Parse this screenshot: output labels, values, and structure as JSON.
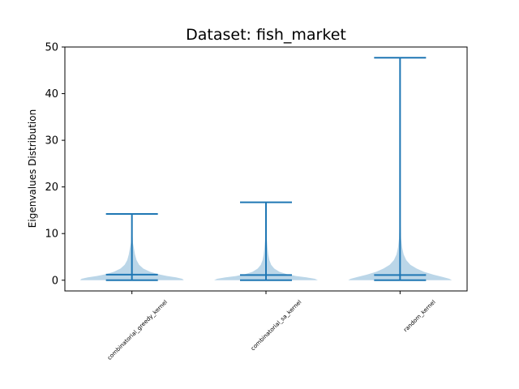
{
  "chart_data": {
    "type": "violin",
    "title": "Dataset: fish_market",
    "xlabel": "",
    "ylabel": "Eigenvalues Distribution",
    "ylim": [
      -2.3,
      50
    ],
    "yticks": [
      0,
      10,
      20,
      30,
      40,
      50
    ],
    "grid": false,
    "colors": {
      "body": "#1f77b4",
      "body_opacity": 0.3,
      "lines": "#1f77b4"
    },
    "categories": [
      "combinatorial_greedy_kernel",
      "combinatorial_sa_kernel",
      "random_kernel"
    ],
    "series": [
      {
        "category": "combinatorial_greedy_kernel",
        "min": 0.0,
        "mean": 1.2,
        "max": 14.2,
        "density": [
          {
            "y": 0.0,
            "w": 1.0
          },
          {
            "y": 0.3,
            "w": 0.97
          },
          {
            "y": 0.6,
            "w": 0.85
          },
          {
            "y": 0.9,
            "w": 0.68
          },
          {
            "y": 1.3,
            "w": 0.5
          },
          {
            "y": 1.8,
            "w": 0.35
          },
          {
            "y": 2.5,
            "w": 0.22
          },
          {
            "y": 3.3,
            "w": 0.14
          },
          {
            "y": 4.3,
            "w": 0.09
          },
          {
            "y": 5.5,
            "w": 0.06
          },
          {
            "y": 6.8,
            "w": 0.04
          },
          {
            "y": 8.0,
            "w": 0.02
          },
          {
            "y": 10.0,
            "w": 0.012
          },
          {
            "y": 12.0,
            "w": 0.008
          },
          {
            "y": 14.2,
            "w": 0.005
          }
        ]
      },
      {
        "category": "combinatorial_sa_kernel",
        "min": 0.0,
        "mean": 1.1,
        "max": 16.7,
        "density": [
          {
            "y": 0.0,
            "w": 1.0
          },
          {
            "y": 0.3,
            "w": 0.94
          },
          {
            "y": 0.6,
            "w": 0.78
          },
          {
            "y": 0.9,
            "w": 0.58
          },
          {
            "y": 1.3,
            "w": 0.4
          },
          {
            "y": 1.8,
            "w": 0.26
          },
          {
            "y": 2.5,
            "w": 0.16
          },
          {
            "y": 3.3,
            "w": 0.1
          },
          {
            "y": 4.3,
            "w": 0.065
          },
          {
            "y": 5.5,
            "w": 0.045
          },
          {
            "y": 7.0,
            "w": 0.03
          },
          {
            "y": 8.5,
            "w": 0.018
          },
          {
            "y": 11.0,
            "w": 0.01
          },
          {
            "y": 14.0,
            "w": 0.007
          },
          {
            "y": 16.7,
            "w": 0.005
          }
        ]
      },
      {
        "category": "random_kernel",
        "min": 0.0,
        "mean": 1.1,
        "max": 47.7,
        "density": [
          {
            "y": 0.0,
            "w": 1.0
          },
          {
            "y": 0.3,
            "w": 0.95
          },
          {
            "y": 0.7,
            "w": 0.82
          },
          {
            "y": 1.2,
            "w": 0.64
          },
          {
            "y": 1.8,
            "w": 0.46
          },
          {
            "y": 2.5,
            "w": 0.32
          },
          {
            "y": 3.3,
            "w": 0.2
          },
          {
            "y": 4.3,
            "w": 0.12
          },
          {
            "y": 5.5,
            "w": 0.07
          },
          {
            "y": 7.0,
            "w": 0.04
          },
          {
            "y": 9.0,
            "w": 0.02
          },
          {
            "y": 12.0,
            "w": 0.01
          },
          {
            "y": 20.0,
            "w": 0.006
          },
          {
            "y": 35.0,
            "w": 0.004
          },
          {
            "y": 47.7,
            "w": 0.003
          }
        ]
      }
    ]
  }
}
